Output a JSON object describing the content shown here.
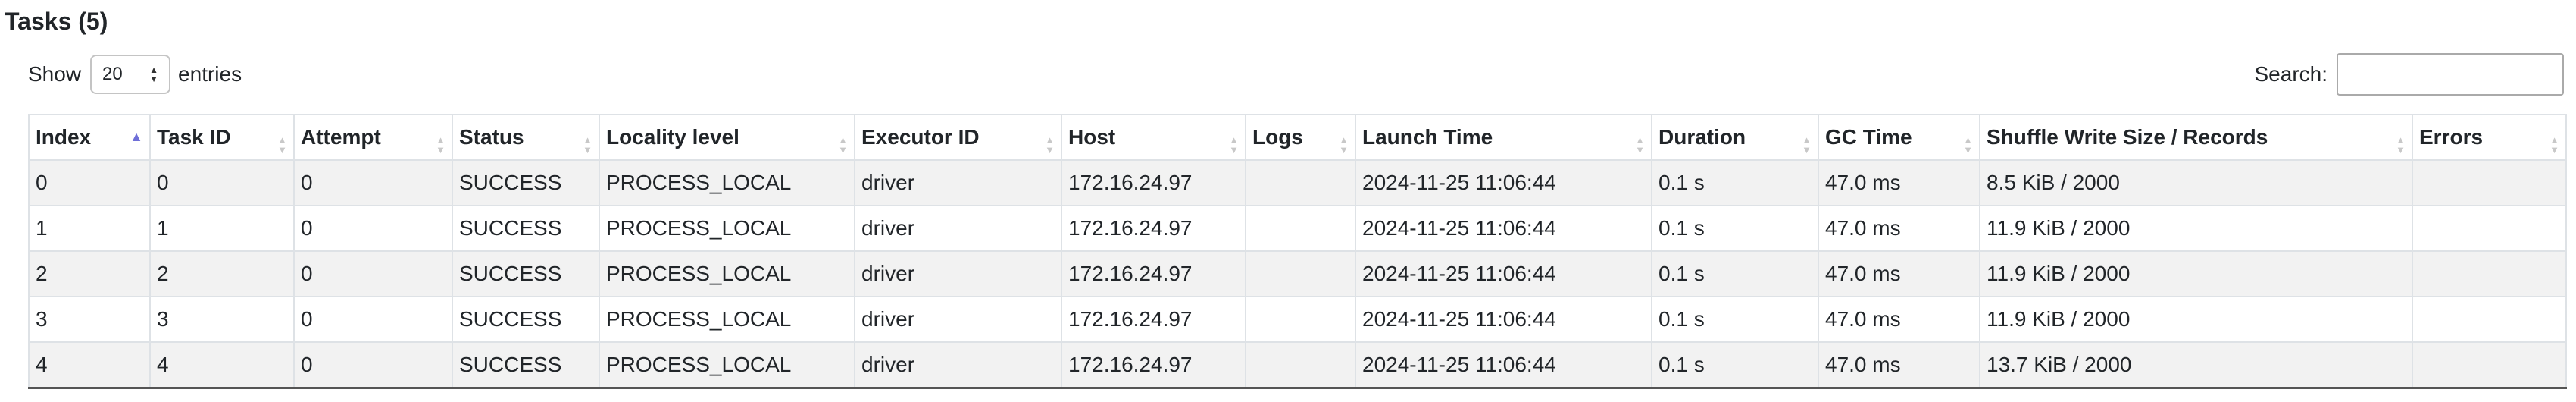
{
  "title": "Tasks (5)",
  "length_control": {
    "prefix": "Show",
    "value": "20",
    "suffix": "entries"
  },
  "search": {
    "label": "Search:",
    "value": "",
    "placeholder": ""
  },
  "table": {
    "columns": [
      {
        "label": "Index",
        "sort": "asc"
      },
      {
        "label": "Task ID",
        "sort": "none"
      },
      {
        "label": "Attempt",
        "sort": "none"
      },
      {
        "label": "Status",
        "sort": "none"
      },
      {
        "label": "Locality level",
        "sort": "none"
      },
      {
        "label": "Executor ID",
        "sort": "none"
      },
      {
        "label": "Host",
        "sort": "none"
      },
      {
        "label": "Logs",
        "sort": "none"
      },
      {
        "label": "Launch Time",
        "sort": "none"
      },
      {
        "label": "Duration",
        "sort": "none"
      },
      {
        "label": "GC Time",
        "sort": "none"
      },
      {
        "label": "Shuffle Write Size / Records",
        "sort": "none"
      },
      {
        "label": "Errors",
        "sort": "none"
      }
    ],
    "rows": [
      [
        "0",
        "0",
        "0",
        "SUCCESS",
        "PROCESS_LOCAL",
        "driver",
        "172.16.24.97",
        "",
        "2024-11-25 11:06:44",
        "0.1 s",
        "47.0 ms",
        "8.5 KiB / 2000",
        ""
      ],
      [
        "1",
        "1",
        "0",
        "SUCCESS",
        "PROCESS_LOCAL",
        "driver",
        "172.16.24.97",
        "",
        "2024-11-25 11:06:44",
        "0.1 s",
        "47.0 ms",
        "11.9 KiB / 2000",
        ""
      ],
      [
        "2",
        "2",
        "0",
        "SUCCESS",
        "PROCESS_LOCAL",
        "driver",
        "172.16.24.97",
        "",
        "2024-11-25 11:06:44",
        "0.1 s",
        "47.0 ms",
        "11.9 KiB / 2000",
        ""
      ],
      [
        "3",
        "3",
        "0",
        "SUCCESS",
        "PROCESS_LOCAL",
        "driver",
        "172.16.24.97",
        "",
        "2024-11-25 11:06:44",
        "0.1 s",
        "47.0 ms",
        "11.9 KiB / 2000",
        ""
      ],
      [
        "4",
        "4",
        "0",
        "SUCCESS",
        "PROCESS_LOCAL",
        "driver",
        "172.16.24.97",
        "",
        "2024-11-25 11:06:44",
        "0.1 s",
        "47.0 ms",
        "13.7 KiB / 2000",
        ""
      ]
    ]
  },
  "colors": {
    "striped_row": "#f2f2f2",
    "border": "#dee2e6",
    "sort_active": "#6f6fd8",
    "sort_inactive": "#c8c8c8"
  }
}
